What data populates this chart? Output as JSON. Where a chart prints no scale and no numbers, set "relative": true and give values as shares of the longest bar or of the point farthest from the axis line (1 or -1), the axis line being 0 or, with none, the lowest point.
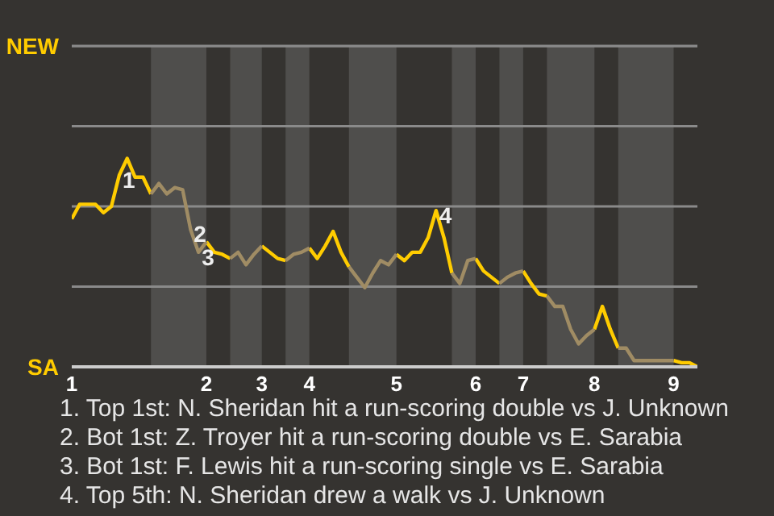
{
  "chart_data": {
    "type": "line",
    "relative": true,
    "categories": [
      "1",
      null,
      null,
      null,
      null,
      null,
      null,
      null,
      null,
      null,
      null,
      null,
      null,
      null,
      null,
      null,
      null,
      "2",
      null,
      null,
      null,
      null,
      null,
      null,
      "3",
      null,
      null,
      null,
      null,
      null,
      "4",
      null,
      null,
      null,
      null,
      null,
      null,
      null,
      null,
      null,
      null,
      "5",
      null,
      null,
      null,
      null,
      null,
      null,
      null,
      null,
      null,
      "6",
      null,
      null,
      null,
      null,
      null,
      "7",
      null,
      null,
      null,
      null,
      null,
      null,
      null,
      null,
      "8",
      null,
      null,
      null,
      null,
      null,
      null,
      null,
      null,
      null,
      "9",
      null,
      null,
      null
    ],
    "marker": "none",
    "line_style": "solid",
    "ref_lines": [
      {
        "axis": "y",
        "value": 0.385,
        "color": "#8a8a8a"
      },
      {
        "axis": "y",
        "value": 0.77,
        "color": "#8a8a8a"
      },
      {
        "axis": "y",
        "value": 1.155,
        "color": "#8a8a8a"
      },
      {
        "axis": "y",
        "value": 1.54,
        "color": "#8a8a8a"
      }
    ],
    "series": [
      {
        "color": "#ffcc00",
        "values": [
          0.71,
          0.78,
          0.78,
          0.78,
          0.74,
          0.77,
          0.92,
          1,
          0.91,
          0.91,
          0.83,
          null,
          null,
          null,
          null,
          null,
          null,
          0.6,
          0.55,
          0.54,
          0.52,
          null,
          null,
          null,
          0.58,
          0.55,
          0.52,
          0.51,
          null,
          null,
          0.57,
          0.52,
          0.58,
          0.65,
          0.55,
          0.48,
          null,
          null,
          null,
          null,
          null,
          0.54,
          0.51,
          0.55,
          0.55,
          0.62,
          0.75,
          0.62,
          0.45,
          null,
          null,
          0.52,
          0.46,
          0.43,
          0.4,
          null,
          null,
          0.46,
          0.4,
          0.35,
          0.34,
          null,
          null,
          null,
          null,
          null,
          0.18,
          0.29,
          0.18,
          0.09,
          null,
          null,
          null,
          null,
          null,
          null,
          0.03,
          0.02,
          0.02,
          0
        ]
      },
      {
        "color": "#a08c64",
        "values": [
          null,
          null,
          null,
          null,
          null,
          null,
          null,
          null,
          null,
          null,
          0.83,
          0.88,
          0.83,
          0.86,
          0.85,
          0.66,
          0.55,
          0.6,
          null,
          null,
          0.52,
          0.55,
          0.49,
          0.54,
          0.58,
          null,
          null,
          0.51,
          0.54,
          0.55,
          0.57,
          null,
          null,
          null,
          null,
          0.48,
          0.43,
          0.38,
          0.45,
          0.51,
          0.49,
          0.54,
          null,
          null,
          null,
          null,
          null,
          null,
          0.45,
          0.4,
          0.51,
          0.52,
          null,
          null,
          0.4,
          0.43,
          0.45,
          0.46,
          null,
          null,
          0.34,
          0.29,
          0.29,
          0.18,
          0.11,
          0.15,
          0.18,
          null,
          null,
          0.09,
          0.09,
          0.03,
          0.03,
          0.03,
          0.03,
          0.03,
          0.03,
          null,
          null,
          null
        ]
      }
    ],
    "annotations": [
      "NEW",
      "SA",
      {
        "text": "1",
        "y": 0.92
      },
      {
        "text": "2",
        "y": 0.66
      },
      {
        "text": "3",
        "y": 0.55
      },
      {
        "text": "4",
        "y": 0.75
      },
      "1. Top 1st: N. Sheridan hit a run-scoring double vs J. Unknown",
      "2. Bot 1st: Z. Troyer hit a run-scoring double vs E. Sarabia",
      "3. Bot 1st: F. Lewis hit a run-scoring single vs E. Sarabia",
      "4. Top 5th: N. Sheridan drew a walk vs J. Unknown"
    ]
  }
}
